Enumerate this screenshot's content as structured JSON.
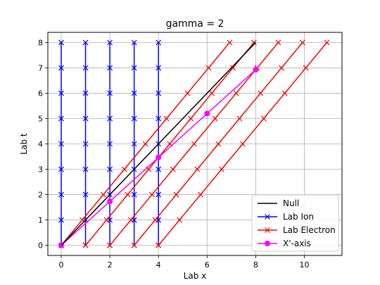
{
  "chart_data": {
    "type": "line",
    "title": "gamma = 2",
    "xlabel": "Lab x",
    "ylabel": "Lab t",
    "xlim": [
      -0.55,
      11.55
    ],
    "ylim": [
      -0.4,
      8.4
    ],
    "xticks": [
      0,
      2,
      4,
      6,
      8,
      10
    ],
    "yticks": [
      0,
      1,
      2,
      3,
      4,
      5,
      6,
      7,
      8
    ],
    "grid": true,
    "legend_position": "lower-right",
    "colors": {
      "null": "#000000",
      "ion": "#0000ff",
      "electron": "#ff0000",
      "xaxis": "#ff00ff"
    },
    "series": [
      {
        "name": "Null",
        "marker": "none",
        "lines": [
          {
            "x": [
              0,
              8
            ],
            "y": [
              0,
              8
            ]
          }
        ]
      },
      {
        "name": "Lab Ion",
        "marker": "x",
        "lines": [
          {
            "x": [
              0,
              0,
              0,
              0,
              0,
              0,
              0,
              0,
              0
            ],
            "y": [
              0,
              1,
              2,
              3,
              4,
              5,
              6,
              7,
              8
            ]
          },
          {
            "x": [
              1,
              1,
              1,
              1,
              1,
              1,
              1,
              1,
              1
            ],
            "y": [
              0,
              1,
              2,
              3,
              4,
              5,
              6,
              7,
              8
            ]
          },
          {
            "x": [
              2,
              2,
              2,
              2,
              2,
              2,
              2,
              2,
              2
            ],
            "y": [
              0,
              1,
              2,
              3,
              4,
              5,
              6,
              7,
              8
            ]
          },
          {
            "x": [
              3,
              3,
              3,
              3,
              3,
              3,
              3,
              3,
              3
            ],
            "y": [
              0,
              1,
              2,
              3,
              4,
              5,
              6,
              7,
              8
            ]
          },
          {
            "x": [
              4,
              4,
              4,
              4,
              4,
              4,
              4,
              4,
              4
            ],
            "y": [
              0,
              1,
              2,
              3,
              4,
              5,
              6,
              7,
              8
            ]
          }
        ]
      },
      {
        "name": "Lab Electron",
        "marker": "x",
        "lines": [
          {
            "x": [
              0,
              0.866,
              1.732,
              2.598,
              3.464,
              4.33,
              5.196,
              6.062,
              6.928
            ],
            "y": [
              0,
              1,
              2,
              3,
              4,
              5,
              6,
              7,
              8
            ]
          },
          {
            "x": [
              1,
              1.866,
              2.732,
              3.598,
              4.464,
              5.33,
              6.196,
              7.062,
              7.928
            ],
            "y": [
              0,
              1,
              2,
              3,
              4,
              5,
              6,
              7,
              8
            ]
          },
          {
            "x": [
              2,
              2.866,
              3.732,
              4.598,
              5.464,
              6.33,
              7.196,
              8.062,
              8.928
            ],
            "y": [
              0,
              1,
              2,
              3,
              4,
              5,
              6,
              7,
              8
            ]
          },
          {
            "x": [
              3,
              3.866,
              4.732,
              5.598,
              6.464,
              7.33,
              8.196,
              9.062,
              9.928
            ],
            "y": [
              0,
              1,
              2,
              3,
              4,
              5,
              6,
              7,
              8
            ]
          },
          {
            "x": [
              4,
              4.866,
              5.732,
              6.598,
              7.464,
              8.33,
              9.196,
              10.062,
              10.928
            ],
            "y": [
              0,
              1,
              2,
              3,
              4,
              5,
              6,
              7,
              8
            ]
          }
        ]
      },
      {
        "name": "X'-axis",
        "marker": "o",
        "lines": [
          {
            "x": [
              0,
              2,
              4,
              6,
              8
            ],
            "y": [
              0,
              1.732,
              3.464,
              5.196,
              6.928
            ]
          }
        ]
      }
    ]
  }
}
